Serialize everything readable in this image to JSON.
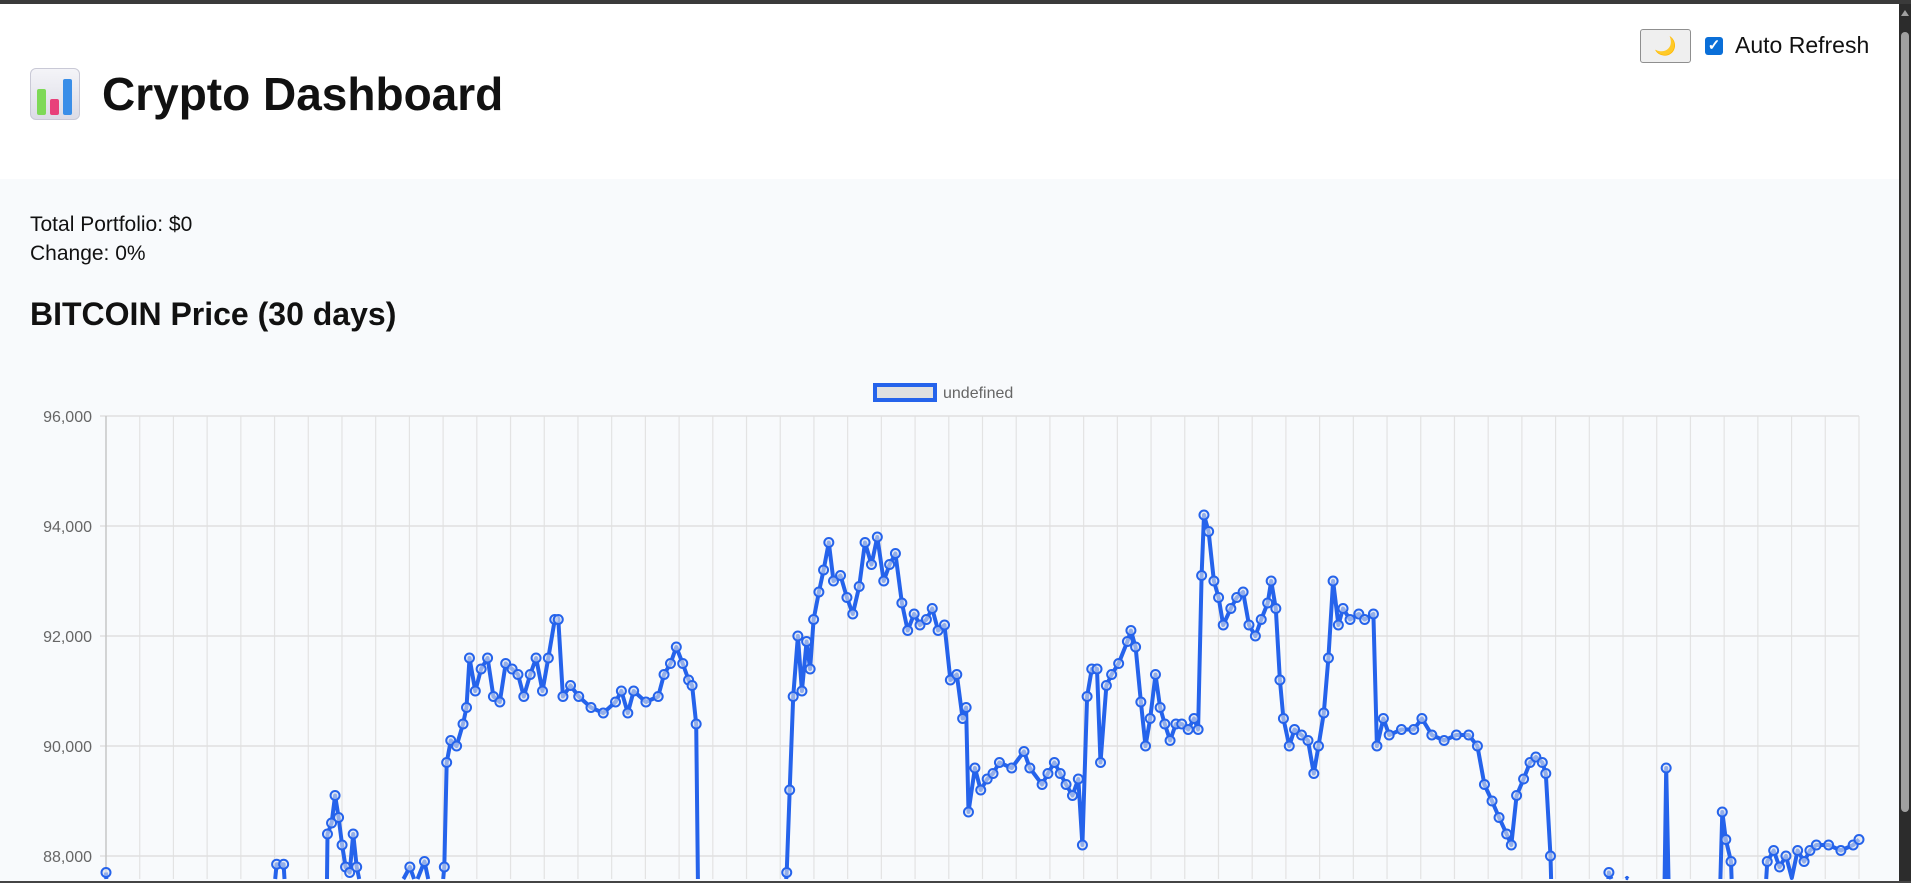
{
  "header": {
    "title": "Crypto Dashboard",
    "logo_icon": "bar-chart-emoji",
    "theme_button_icon": "crescent-moon-icon",
    "theme_button_glyph": "🌙",
    "auto_refresh_label": "Auto Refresh",
    "auto_refresh_checked": true
  },
  "summary": {
    "total_portfolio": "Total Portfolio: $0",
    "change": "Change: 0%"
  },
  "chart_title": "BITCOIN Price (30 days)",
  "chart_data": {
    "type": "line",
    "legend": {
      "label": "undefined",
      "placement": "top"
    },
    "line_color": "#2563eb",
    "grid": true,
    "yticks": [
      "96,000",
      "94,000",
      "92,000",
      "90,000",
      "88,000"
    ],
    "ytick_values": [
      96000,
      94000,
      92000,
      90000,
      88000
    ],
    "ylim": [
      84000,
      96000
    ],
    "xlim": [
      0,
      30
    ],
    "points": [
      [
        0,
        87700
      ],
      [
        0.06,
        86500
      ],
      [
        2.8,
        86500
      ],
      [
        2.92,
        87850
      ],
      [
        3.04,
        87850
      ],
      [
        3.1,
        86800
      ],
      [
        3.19,
        87500
      ],
      [
        3.25,
        86500
      ],
      [
        3.77,
        86500
      ],
      [
        3.79,
        88400
      ],
      [
        3.86,
        88600
      ],
      [
        3.92,
        89100
      ],
      [
        3.98,
        88700
      ],
      [
        4.04,
        88200
      ],
      [
        4.1,
        87800
      ],
      [
        4.17,
        87700
      ],
      [
        4.23,
        88400
      ],
      [
        4.29,
        87800
      ],
      [
        4.35,
        87500
      ],
      [
        4.42,
        86800
      ],
      [
        4.5,
        87200
      ],
      [
        4.7,
        87400
      ],
      [
        4.9,
        87300
      ],
      [
        5.1,
        87600
      ],
      [
        5.2,
        87800
      ],
      [
        5.3,
        87500
      ],
      [
        5.45,
        87900
      ],
      [
        5.55,
        87400
      ],
      [
        5.65,
        86800
      ],
      [
        5.73,
        87100
      ],
      [
        5.79,
        87800
      ],
      [
        5.83,
        89700
      ],
      [
        5.9,
        90100
      ],
      [
        6.0,
        90000
      ],
      [
        6.11,
        90400
      ],
      [
        6.17,
        90700
      ],
      [
        6.22,
        91600
      ],
      [
        6.32,
        91000
      ],
      [
        6.42,
        91400
      ],
      [
        6.53,
        91600
      ],
      [
        6.63,
        90900
      ],
      [
        6.74,
        90800
      ],
      [
        6.84,
        91500
      ],
      [
        6.95,
        91400
      ],
      [
        7.05,
        91300
      ],
      [
        7.15,
        90900
      ],
      [
        7.26,
        91300
      ],
      [
        7.36,
        91600
      ],
      [
        7.47,
        91000
      ],
      [
        7.57,
        91600
      ],
      [
        7.68,
        92300
      ],
      [
        7.74,
        92300
      ],
      [
        7.82,
        90900
      ],
      [
        7.95,
        91100
      ],
      [
        8.09,
        90900
      ],
      [
        8.3,
        90700
      ],
      [
        8.51,
        90600
      ],
      [
        8.72,
        90800
      ],
      [
        8.82,
        91000
      ],
      [
        8.93,
        90600
      ],
      [
        9.03,
        91000
      ],
      [
        9.24,
        90800
      ],
      [
        9.45,
        90900
      ],
      [
        9.55,
        91300
      ],
      [
        9.66,
        91500
      ],
      [
        9.76,
        91800
      ],
      [
        9.87,
        91500
      ],
      [
        9.97,
        91200
      ],
      [
        10.03,
        91100
      ],
      [
        10.1,
        90400
      ],
      [
        10.14,
        86500
      ],
      [
        11.55,
        86500
      ],
      [
        11.65,
        87700
      ],
      [
        11.7,
        89200
      ],
      [
        11.76,
        90900
      ],
      [
        11.84,
        92000
      ],
      [
        11.91,
        91000
      ],
      [
        11.99,
        91900
      ],
      [
        12.05,
        91400
      ],
      [
        12.11,
        92300
      ],
      [
        12.2,
        92800
      ],
      [
        12.28,
        93200
      ],
      [
        12.37,
        93700
      ],
      [
        12.45,
        93000
      ],
      [
        12.57,
        93100
      ],
      [
        12.68,
        92700
      ],
      [
        12.78,
        92400
      ],
      [
        12.89,
        92900
      ],
      [
        12.99,
        93700
      ],
      [
        13.1,
        93300
      ],
      [
        13.2,
        93800
      ],
      [
        13.31,
        93000
      ],
      [
        13.41,
        93300
      ],
      [
        13.51,
        93500
      ],
      [
        13.62,
        92600
      ],
      [
        13.72,
        92100
      ],
      [
        13.83,
        92400
      ],
      [
        13.93,
        92200
      ],
      [
        14.04,
        92300
      ],
      [
        14.14,
        92500
      ],
      [
        14.24,
        92100
      ],
      [
        14.35,
        92200
      ],
      [
        14.45,
        91200
      ],
      [
        14.56,
        91300
      ],
      [
        14.66,
        90500
      ],
      [
        14.72,
        90700
      ],
      [
        14.76,
        88800
      ],
      [
        14.87,
        89600
      ],
      [
        14.97,
        89200
      ],
      [
        15.08,
        89400
      ],
      [
        15.18,
        89500
      ],
      [
        15.29,
        89700
      ],
      [
        15.5,
        89600
      ],
      [
        15.71,
        89900
      ],
      [
        15.81,
        89600
      ],
      [
        16.02,
        89300
      ],
      [
        16.12,
        89500
      ],
      [
        16.23,
        89700
      ],
      [
        16.33,
        89500
      ],
      [
        16.43,
        89300
      ],
      [
        16.54,
        89100
      ],
      [
        16.64,
        89400
      ],
      [
        16.71,
        88200
      ],
      [
        16.79,
        90900
      ],
      [
        16.87,
        91400
      ],
      [
        16.96,
        91400
      ],
      [
        17.02,
        89700
      ],
      [
        17.12,
        91100
      ],
      [
        17.21,
        91300
      ],
      [
        17.33,
        91500
      ],
      [
        17.48,
        91900
      ],
      [
        17.54,
        92100
      ],
      [
        17.62,
        91800
      ],
      [
        17.71,
        90800
      ],
      [
        17.79,
        90000
      ],
      [
        17.87,
        90500
      ],
      [
        17.96,
        91300
      ],
      [
        18.04,
        90700
      ],
      [
        18.12,
        90400
      ],
      [
        18.21,
        90100
      ],
      [
        18.31,
        90400
      ],
      [
        18.41,
        90400
      ],
      [
        18.52,
        90300
      ],
      [
        18.62,
        90500
      ],
      [
        18.69,
        90300
      ],
      [
        18.75,
        93100
      ],
      [
        18.79,
        94200
      ],
      [
        18.87,
        93900
      ],
      [
        18.96,
        93000
      ],
      [
        19.04,
        92700
      ],
      [
        19.12,
        92200
      ],
      [
        19.25,
        92500
      ],
      [
        19.35,
        92700
      ],
      [
        19.46,
        92800
      ],
      [
        19.56,
        92200
      ],
      [
        19.67,
        92000
      ],
      [
        19.77,
        92300
      ],
      [
        19.88,
        92600
      ],
      [
        19.94,
        93000
      ],
      [
        20.02,
        92500
      ],
      [
        20.09,
        91200
      ],
      [
        20.15,
        90500
      ],
      [
        20.25,
        90000
      ],
      [
        20.34,
        90300
      ],
      [
        20.46,
        90200
      ],
      [
        20.57,
        90100
      ],
      [
        20.67,
        89500
      ],
      [
        20.75,
        90000
      ],
      [
        20.84,
        90600
      ],
      [
        20.92,
        91600
      ],
      [
        21.0,
        93000
      ],
      [
        21.09,
        92200
      ],
      [
        21.17,
        92500
      ],
      [
        21.29,
        92300
      ],
      [
        21.44,
        92400
      ],
      [
        21.54,
        92300
      ],
      [
        21.69,
        92400
      ],
      [
        21.75,
        90000
      ],
      [
        21.86,
        90500
      ],
      [
        21.96,
        90200
      ],
      [
        22.17,
        90300
      ],
      [
        22.38,
        90300
      ],
      [
        22.52,
        90500
      ],
      [
        22.69,
        90200
      ],
      [
        22.9,
        90100
      ],
      [
        23.11,
        90200
      ],
      [
        23.32,
        90200
      ],
      [
        23.47,
        90000
      ],
      [
        23.59,
        89300
      ],
      [
        23.72,
        89000
      ],
      [
        23.84,
        88700
      ],
      [
        23.97,
        88400
      ],
      [
        24.05,
        88200
      ],
      [
        24.14,
        89100
      ],
      [
        24.26,
        89400
      ],
      [
        24.37,
        89700
      ],
      [
        24.47,
        89800
      ],
      [
        24.58,
        89700
      ],
      [
        24.64,
        89500
      ],
      [
        24.72,
        88000
      ],
      [
        24.76,
        86500
      ],
      [
        25.62,
        86500
      ],
      [
        25.72,
        87700
      ],
      [
        25.83,
        87400
      ],
      [
        26.03,
        87600
      ],
      [
        26.24,
        87300
      ],
      [
        26.35,
        86500
      ],
      [
        26.66,
        86500
      ],
      [
        26.7,
        89600
      ],
      [
        26.76,
        86500
      ],
      [
        27.6,
        86500
      ],
      [
        27.66,
        88800
      ],
      [
        27.72,
        88300
      ],
      [
        27.81,
        87900
      ],
      [
        27.85,
        86500
      ],
      [
        28.35,
        86500
      ],
      [
        28.43,
        87900
      ],
      [
        28.54,
        88100
      ],
      [
        28.64,
        87800
      ],
      [
        28.75,
        88000
      ],
      [
        28.85,
        87600
      ],
      [
        28.95,
        88100
      ],
      [
        29.06,
        87900
      ],
      [
        29.16,
        88100
      ],
      [
        29.27,
        88200
      ],
      [
        29.48,
        88200
      ],
      [
        29.69,
        88100
      ],
      [
        29.9,
        88200
      ],
      [
        30.0,
        88300
      ]
    ]
  }
}
